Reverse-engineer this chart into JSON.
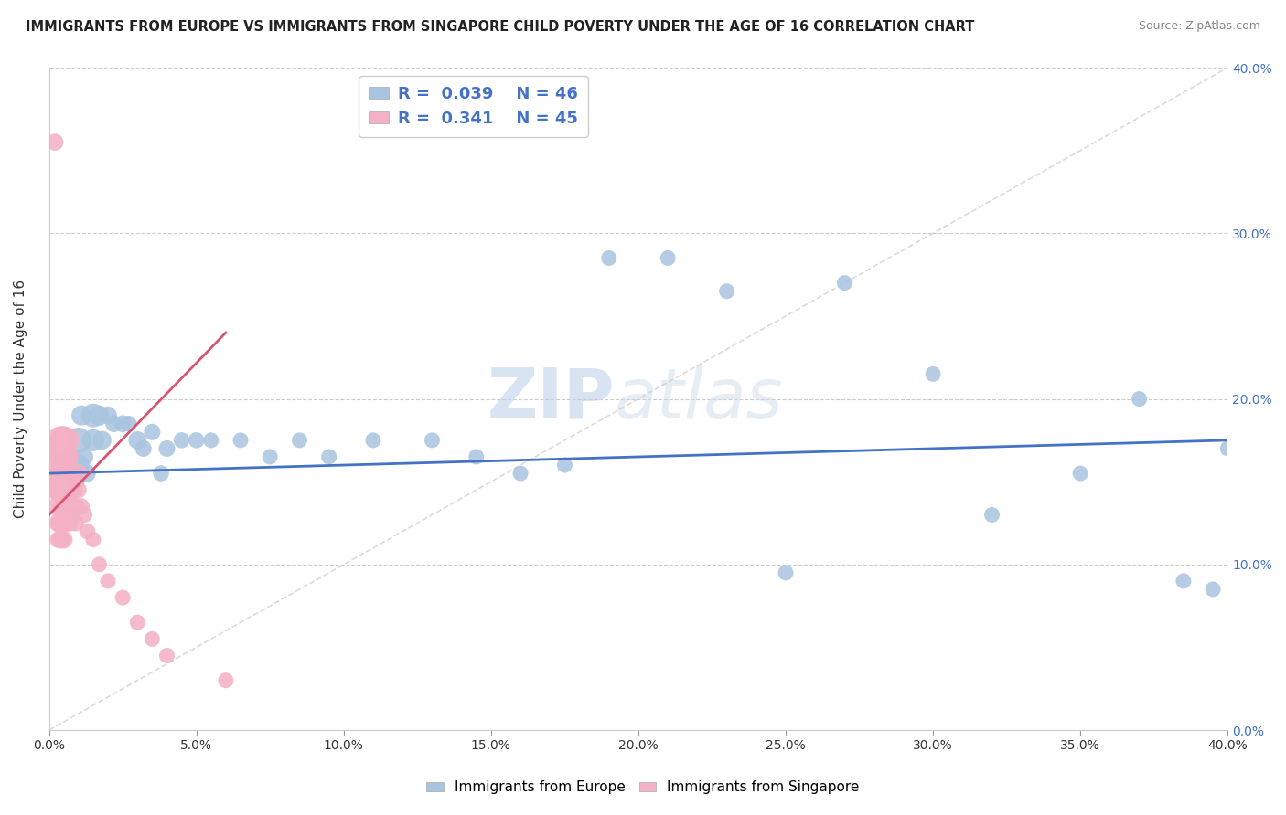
{
  "title": "IMMIGRANTS FROM EUROPE VS IMMIGRANTS FROM SINGAPORE CHILD POVERTY UNDER THE AGE OF 16 CORRELATION CHART",
  "source": "Source: ZipAtlas.com",
  "ylabel": "Child Poverty Under the Age of 16",
  "xlim": [
    0,
    0.4
  ],
  "ylim": [
    0,
    0.4
  ],
  "xticks": [
    0.0,
    0.05,
    0.1,
    0.15,
    0.2,
    0.25,
    0.3,
    0.35,
    0.4
  ],
  "yticks": [
    0.0,
    0.1,
    0.2,
    0.3,
    0.4
  ],
  "legend_europe": "Immigrants from Europe",
  "legend_singapore": "Immigrants from Singapore",
  "europe_R": "0.039",
  "europe_N": "46",
  "singapore_R": "0.341",
  "singapore_N": "45",
  "europe_color": "#a8c4e0",
  "singapore_color": "#f4b0c4",
  "europe_line_color": "#4472c4",
  "singapore_line_color": "#d9546e",
  "watermark_zip": "ZIP",
  "watermark_atlas": "atlas",
  "europe_x": [
    0.005,
    0.007,
    0.008,
    0.009,
    0.01,
    0.01,
    0.011,
    0.012,
    0.013,
    0.015,
    0.015,
    0.017,
    0.018,
    0.02,
    0.022,
    0.025,
    0.027,
    0.03,
    0.032,
    0.035,
    0.038,
    0.04,
    0.045,
    0.05,
    0.055,
    0.065,
    0.075,
    0.085,
    0.095,
    0.11,
    0.13,
    0.145,
    0.16,
    0.175,
    0.19,
    0.21,
    0.23,
    0.25,
    0.27,
    0.3,
    0.32,
    0.35,
    0.37,
    0.385,
    0.395,
    0.4
  ],
  "europe_y": [
    0.16,
    0.165,
    0.13,
    0.15,
    0.16,
    0.175,
    0.19,
    0.165,
    0.155,
    0.19,
    0.175,
    0.19,
    0.175,
    0.19,
    0.185,
    0.185,
    0.185,
    0.175,
    0.17,
    0.18,
    0.155,
    0.17,
    0.175,
    0.175,
    0.175,
    0.175,
    0.165,
    0.175,
    0.165,
    0.175,
    0.175,
    0.165,
    0.155,
    0.16,
    0.285,
    0.285,
    0.265,
    0.095,
    0.27,
    0.215,
    0.13,
    0.155,
    0.2,
    0.09,
    0.085,
    0.17
  ],
  "europe_size": [
    400,
    200,
    150,
    200,
    300,
    400,
    250,
    200,
    180,
    350,
    300,
    250,
    220,
    200,
    180,
    180,
    160,
    200,
    170,
    170,
    160,
    170,
    160,
    160,
    150,
    150,
    150,
    150,
    150,
    150,
    150,
    150,
    150,
    150,
    150,
    150,
    150,
    150,
    150,
    150,
    150,
    150,
    150,
    150,
    150,
    150
  ],
  "singapore_x": [
    0.002,
    0.003,
    0.003,
    0.003,
    0.003,
    0.003,
    0.004,
    0.004,
    0.004,
    0.004,
    0.004,
    0.004,
    0.005,
    0.005,
    0.005,
    0.005,
    0.005,
    0.005,
    0.005,
    0.006,
    0.006,
    0.006,
    0.006,
    0.006,
    0.007,
    0.007,
    0.007,
    0.007,
    0.008,
    0.008,
    0.009,
    0.009,
    0.01,
    0.01,
    0.011,
    0.012,
    0.013,
    0.015,
    0.017,
    0.02,
    0.025,
    0.03,
    0.035,
    0.04,
    0.06
  ],
  "singapore_y": [
    0.355,
    0.155,
    0.145,
    0.135,
    0.125,
    0.115,
    0.175,
    0.165,
    0.155,
    0.145,
    0.125,
    0.115,
    0.175,
    0.165,
    0.155,
    0.145,
    0.135,
    0.125,
    0.115,
    0.175,
    0.165,
    0.155,
    0.145,
    0.135,
    0.155,
    0.145,
    0.135,
    0.125,
    0.145,
    0.135,
    0.135,
    0.125,
    0.155,
    0.145,
    0.135,
    0.13,
    0.12,
    0.115,
    0.1,
    0.09,
    0.08,
    0.065,
    0.055,
    0.045,
    0.03
  ],
  "singapore_size": [
    180,
    350,
    300,
    250,
    200,
    170,
    500,
    450,
    400,
    350,
    250,
    200,
    500,
    450,
    400,
    350,
    300,
    250,
    200,
    400,
    350,
    300,
    250,
    200,
    300,
    250,
    200,
    170,
    250,
    200,
    200,
    170,
    200,
    170,
    170,
    160,
    160,
    150,
    150,
    150,
    150,
    150,
    150,
    150,
    150
  ],
  "singapore_trendline_x": [
    0.0,
    0.06
  ],
  "singapore_trendline_y": [
    0.13,
    0.24
  ],
  "europe_trendline_x": [
    0.0,
    0.4
  ],
  "europe_trendline_y": [
    0.155,
    0.175
  ],
  "diag_line_x": [
    0.0,
    0.4
  ],
  "diag_line_y": [
    0.0,
    0.4
  ]
}
